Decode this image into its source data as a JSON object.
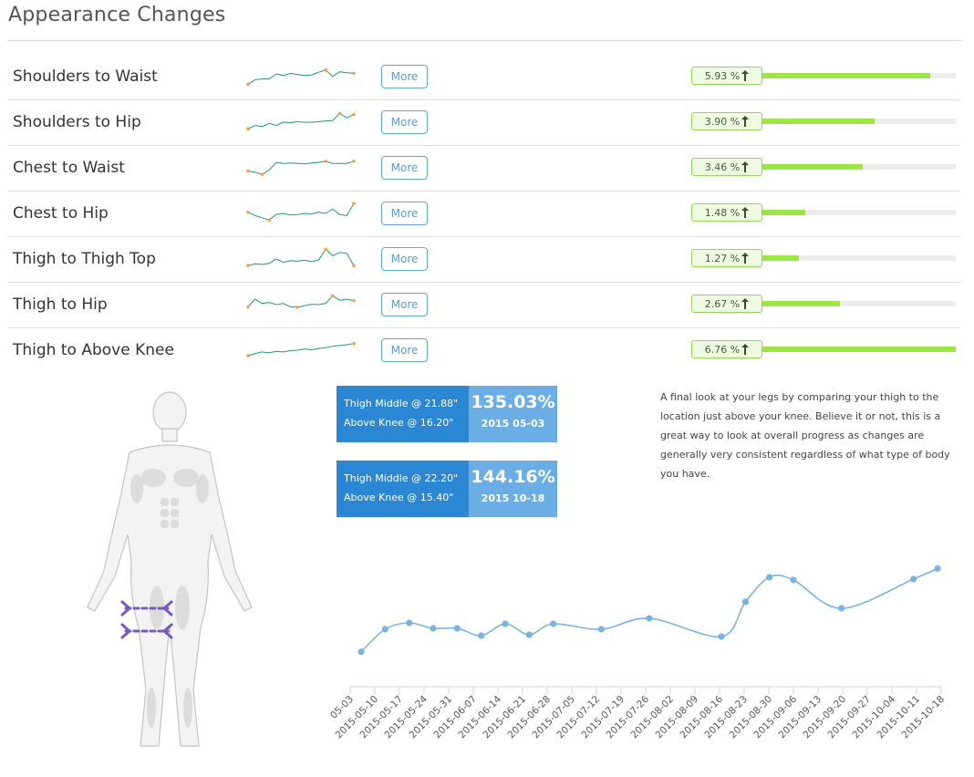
{
  "header": {
    "title": "Appearance Changes"
  },
  "metrics": [
    {
      "label": "Shoulders to Waist",
      "more_label": "More",
      "percent_text": "5.93 %",
      "percent": 5.93,
      "fill_fraction": 0.87,
      "spark": [
        0.15,
        0.35,
        0.4,
        0.4,
        0.62,
        0.55,
        0.65,
        0.6,
        0.55,
        0.58,
        0.7,
        0.8,
        0.5,
        0.72,
        0.68,
        0.65
      ]
    },
    {
      "label": "Shoulders to Hip",
      "more_label": "More",
      "percent_text": "3.90 %",
      "percent": 3.9,
      "fill_fraction": 0.58,
      "spark": [
        0.2,
        0.35,
        0.3,
        0.45,
        0.35,
        0.5,
        0.48,
        0.52,
        0.5,
        0.5,
        0.52,
        0.56,
        0.58,
        0.9,
        0.7,
        0.85
      ]
    },
    {
      "label": "Chest to Waist",
      "more_label": "More",
      "percent_text": "3.46 %",
      "percent": 3.46,
      "fill_fraction": 0.52,
      "spark": [
        0.35,
        0.3,
        0.2,
        0.4,
        0.75,
        0.7,
        0.72,
        0.7,
        0.68,
        0.72,
        0.75,
        0.8,
        0.7,
        0.7,
        0.7,
        0.8
      ]
    },
    {
      "label": "Chest to Hip",
      "more_label": "More",
      "percent_text": "1.48 %",
      "percent": 1.48,
      "fill_fraction": 0.22,
      "spark": [
        0.55,
        0.4,
        0.3,
        0.2,
        0.45,
        0.5,
        0.42,
        0.45,
        0.5,
        0.48,
        0.55,
        0.5,
        0.7,
        0.45,
        0.4,
        0.95
      ]
    },
    {
      "label": "Thigh to Thigh Top",
      "more_label": "More",
      "percent_text": "1.27 %",
      "percent": 1.27,
      "fill_fraction": 0.19,
      "spark": [
        0.2,
        0.28,
        0.25,
        0.3,
        0.5,
        0.35,
        0.42,
        0.4,
        0.45,
        0.38,
        0.45,
        0.95,
        0.65,
        0.8,
        0.75,
        0.2
      ]
    },
    {
      "label": "Thigh to Hip",
      "more_label": "More",
      "percent_text": "2.67 %",
      "percent": 2.67,
      "fill_fraction": 0.4,
      "spark": [
        0.4,
        0.75,
        0.55,
        0.6,
        0.5,
        0.55,
        0.4,
        0.38,
        0.45,
        0.52,
        0.5,
        0.55,
        0.9,
        0.7,
        0.75,
        0.68
      ]
    },
    {
      "label": "Thigh to Above Knee",
      "more_label": "More",
      "percent_text": "6.76 %",
      "percent": 6.76,
      "fill_fraction": 1.0,
      "spark": [
        0.25,
        0.35,
        0.42,
        0.38,
        0.45,
        0.42,
        0.48,
        0.5,
        0.55,
        0.52,
        0.58,
        0.62,
        0.68,
        0.72,
        0.75,
        0.8
      ]
    }
  ],
  "cards": [
    {
      "line1": "Thigh Middle @ 21.88\"",
      "line2": "Above Knee @ 16.20\"",
      "value": "135.03%",
      "date": "2015 05-03"
    },
    {
      "line1": "Thigh Middle @ 22.20\"",
      "line2": "Above Knee @ 15.40\"",
      "value": "144.16%",
      "date": "2015 10-18"
    }
  ],
  "description": "A final look at your legs by comparing your thigh to the location just above your knee. Believe it or not, this is a great way to look at overall progress as changes are generally very consistent regardless of what type of body you have.",
  "colors": {
    "accent_blue": "#2b86d3",
    "light_blue": "#6aaee5",
    "progress_green": "#9be645",
    "sparkline": "#1f9a73",
    "spark_point": "#f5a04a",
    "chart_line": "#7ab2e4"
  },
  "icons": {
    "badge_arrow": "up-arrow-icon",
    "figure": "human-body-icon"
  },
  "chart_data": {
    "type": "line",
    "x": [
      "2015-05-03",
      "2015-05-10",
      "2015-05-17",
      "2015-05-24",
      "2015-05-31",
      "2015-06-07",
      "2015-06-14",
      "2015-06-21",
      "2015-06-28",
      "2015-07-05",
      "2015-07-12",
      "2015-07-19",
      "2015-07-26",
      "2015-08-02",
      "2015-08-09",
      "2015-08-16",
      "2015-08-23",
      "2015-08-30",
      "2015-09-06",
      "2015-09-13",
      "2015-09-20",
      "2015-09-27",
      "2015-10-04",
      "2015-10-11",
      "2015-10-18"
    ],
    "tick_labels": [
      "05-03",
      "2015-05-10",
      "2015-05-17",
      "2015-05-24",
      "2015-05-31",
      "2015-06-07",
      "2015-06-14",
      "2015-06-21",
      "2015-06-28",
      "2015-07-05",
      "2015-07-12",
      "2015-07-19",
      "2015-07-26",
      "2015-08-02",
      "2015-08-09",
      "2015-08-16",
      "2015-08-23",
      "2015-08-30",
      "2015-09-06",
      "2015-09-13",
      "2015-09-20",
      "2015-09-27",
      "2015-10-04",
      "2015-10-11",
      "2015-10-18"
    ],
    "series": [
      {
        "points": [
          [
            "2015-05-03",
            135.03
          ],
          [
            "2015-05-10",
            137.5
          ],
          [
            "2015-05-17",
            138.2
          ],
          [
            "2015-05-24",
            137.6
          ],
          [
            "2015-05-31",
            137.6
          ],
          [
            "2015-06-07",
            136.8
          ],
          [
            "2015-06-14",
            138.1
          ],
          [
            "2015-06-21",
            136.9
          ],
          [
            "2015-06-28",
            138.1
          ],
          [
            "2015-07-12",
            137.5
          ],
          [
            "2015-07-26",
            138.7
          ],
          [
            "2015-08-16",
            136.7
          ],
          [
            "2015-08-23",
            140.5
          ],
          [
            "2015-08-30",
            143.2
          ],
          [
            "2015-09-06",
            142.9
          ],
          [
            "2015-09-20",
            139.8
          ],
          [
            "2015-10-11",
            143.0
          ],
          [
            "2015-10-18",
            144.16
          ]
        ]
      }
    ],
    "ylim": [
      133,
      146
    ],
    "grid": false,
    "legend": "none"
  }
}
